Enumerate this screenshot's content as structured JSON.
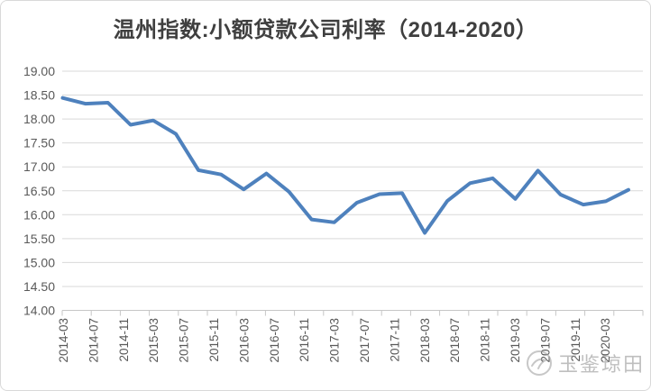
{
  "ui": {
    "title": "温州指数:小额贷款公司利率（2014-2020）",
    "watermark_text": "玉鉴琼田"
  },
  "colors": {
    "line": "#4E81BD",
    "grid": "#d9d9d9",
    "axis": "#c6c6c6",
    "tick_label": "#595959",
    "title": "#3f3f3f",
    "watermark": "#8c8c8c"
  },
  "chart_data": {
    "type": "line",
    "title": "温州指数:小额贷款公司利率（2014-2020）",
    "x": [
      "2014-03",
      "2014-06",
      "2014-09",
      "2014-12",
      "2015-03",
      "2015-06",
      "2015-09",
      "2015-12",
      "2016-03",
      "2016-06",
      "2016-09",
      "2016-12",
      "2017-03",
      "2017-06",
      "2017-09",
      "2017-12",
      "2018-03",
      "2018-06",
      "2018-09",
      "2018-12",
      "2019-03",
      "2019-06",
      "2019-09",
      "2019-12",
      "2020-03",
      "2020-06"
    ],
    "values": [
      18.44,
      18.32,
      18.34,
      17.88,
      17.97,
      17.69,
      16.93,
      16.84,
      16.53,
      16.86,
      16.48,
      15.9,
      15.84,
      16.25,
      16.43,
      16.45,
      15.62,
      16.29,
      16.66,
      16.76,
      16.33,
      16.92,
      16.42,
      16.21,
      16.28,
      16.52
    ],
    "x_tick_labels": [
      "2014-03",
      "2014-07",
      "2014-11",
      "2015-03",
      "2015-07",
      "2015-11",
      "2016-03",
      "2016-07",
      "2016-11",
      "2017-03",
      "2017-07",
      "2017-11",
      "2018-03",
      "2018-07",
      "2018-11",
      "2019-03",
      "2019-07",
      "2019-11",
      "2020-03"
    ],
    "y_tick_labels": [
      "19.00",
      "18.50",
      "18.00",
      "17.50",
      "17.00",
      "16.50",
      "16.00",
      "15.50",
      "15.00",
      "14.50",
      "14.00"
    ],
    "ylim": [
      14.0,
      19.0
    ],
    "y_step": 0.5,
    "grid": true,
    "legend": false,
    "xlabel": "",
    "ylabel": ""
  }
}
